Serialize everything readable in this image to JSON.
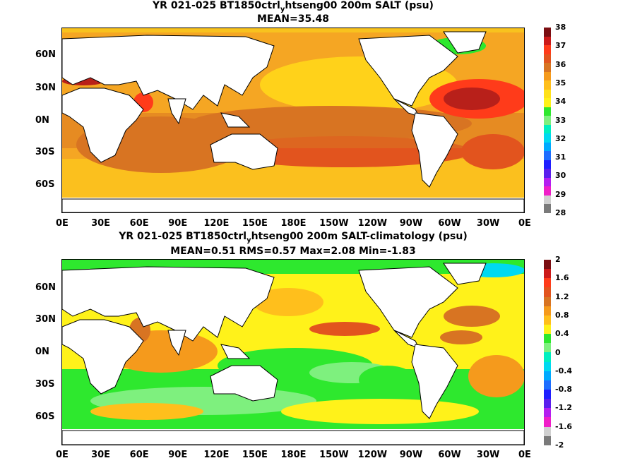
{
  "panel1": {
    "title_part1": "YR 021-025 BT1850ctrl",
    "title_sub": "y",
    "title_part2": "htseng00 200m SALT (psu)",
    "subtitle": "MEAN=35.48",
    "colorbar": {
      "labels": [
        "38",
        "37",
        "36",
        "35",
        "34",
        "33",
        "32",
        "31",
        "30",
        "29",
        "28"
      ],
      "colors": [
        "#7b0e12",
        "#cc1a1a",
        "#ff3b1a",
        "#e2541e",
        "#d87422",
        "#f59a1c",
        "#ffbf1c",
        "#ffe11a",
        "#fff21a",
        "#2ee82e",
        "#7ef07e",
        "#00f0c0",
        "#00d9f0",
        "#00aaff",
        "#1e6eff",
        "#1e1eff",
        "#5a1eee",
        "#b41ef0",
        "#f01ec8",
        "#d0d0d0",
        "#7a7a7a"
      ]
    }
  },
  "panel2": {
    "title_part1": "YR 021-025 BT1850ctrl",
    "title_sub": "y",
    "title_part2": "htseng00 200m SALT-climatology (psu)",
    "subtitle": "MEAN=0.51   RMS=0.57   Max=2.08   Min=-1.83",
    "colorbar": {
      "labels": [
        "2",
        "1.6",
        "1.2",
        "0.8",
        "0.4",
        "0",
        "-0.4",
        "-0.8",
        "-1.2",
        "-1.6",
        "-2"
      ],
      "colors": [
        "#7b0e12",
        "#cc1a1a",
        "#ff3b1a",
        "#e2541e",
        "#d87422",
        "#f59a1c",
        "#ffbf1c",
        "#fff21a",
        "#2ee82e",
        "#7ef07e",
        "#00f0c0",
        "#00d9f0",
        "#00aaff",
        "#1e6eff",
        "#1e1eff",
        "#5a1eee",
        "#b41ef0",
        "#f01ec8",
        "#d0d0d0",
        "#7a7a7a"
      ]
    }
  },
  "lat_labels": [
    "60N",
    "30N",
    "0N",
    "30S",
    "60S"
  ],
  "lon_labels": [
    "0E",
    "30E",
    "60E",
    "90E",
    "120E",
    "150E",
    "180E",
    "150W",
    "120W",
    "90W",
    "60W",
    "30W",
    "0E"
  ]
}
